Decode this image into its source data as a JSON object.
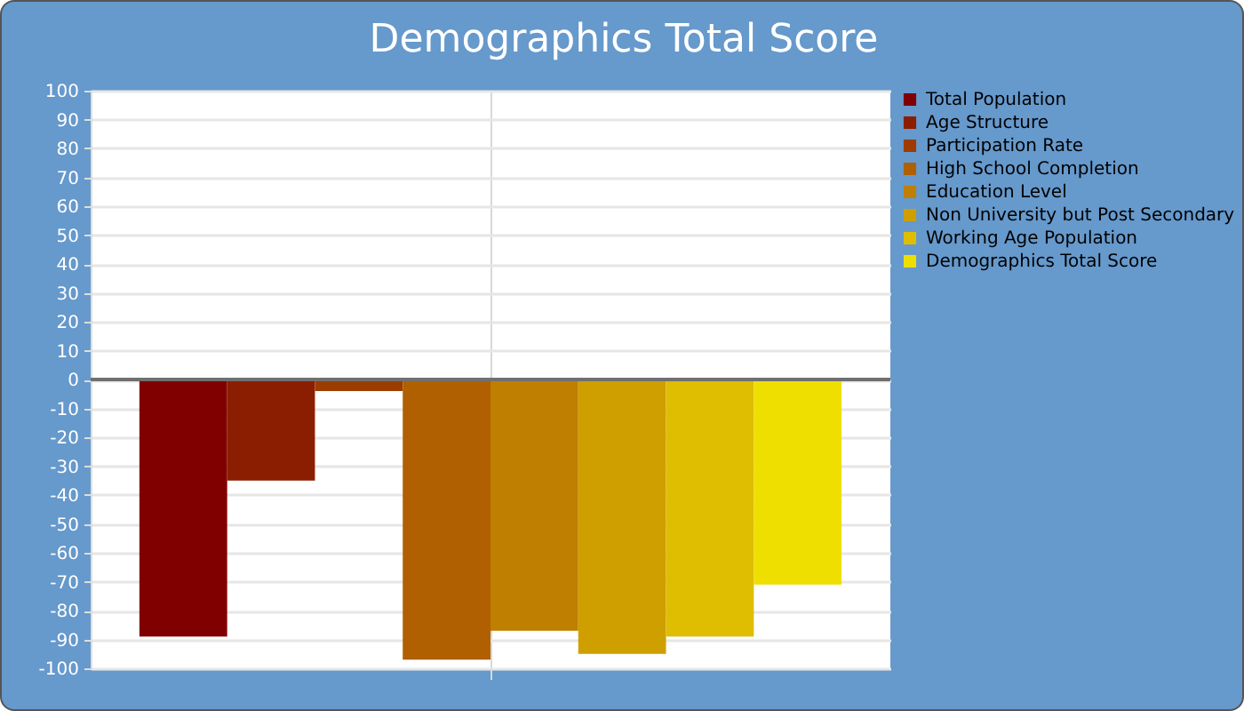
{
  "chart_data": {
    "type": "bar",
    "title": "Demographics Total Score",
    "categories": [
      null
    ],
    "series": [
      {
        "name": "Total Population",
        "color": "#800000",
        "values": [
          -89
        ]
      },
      {
        "name": "Age Structure",
        "color": "#8b1e00",
        "values": [
          -35
        ]
      },
      {
        "name": "Participation Rate",
        "color": "#9d3c00",
        "values": [
          -4
        ]
      },
      {
        "name": "High School Completion",
        "color": "#b06000",
        "values": [
          -97
        ]
      },
      {
        "name": "Education Level",
        "color": "#bf7f00",
        "values": [
          -87
        ]
      },
      {
        "name": "Non University but Post Secondary",
        "color": "#cf9f00",
        "values": [
          -95
        ]
      },
      {
        "name": "Working Age Population",
        "color": "#dfbd00",
        "values": [
          -89
        ]
      },
      {
        "name": "Demographics Total Score",
        "color": "#eedf00",
        "values": [
          -71
        ]
      }
    ],
    "ylim": [
      -100,
      100
    ],
    "yticks": [
      -100,
      -90,
      -80,
      -70,
      -60,
      -50,
      -40,
      -30,
      -20,
      -10,
      0,
      10,
      20,
      30,
      40,
      50,
      60,
      70,
      80,
      90,
      100
    ],
    "ref_lines": [
      {
        "axis": "y",
        "value": 0,
        "color": "#707070"
      }
    ],
    "grid": true,
    "legend": "top right"
  }
}
